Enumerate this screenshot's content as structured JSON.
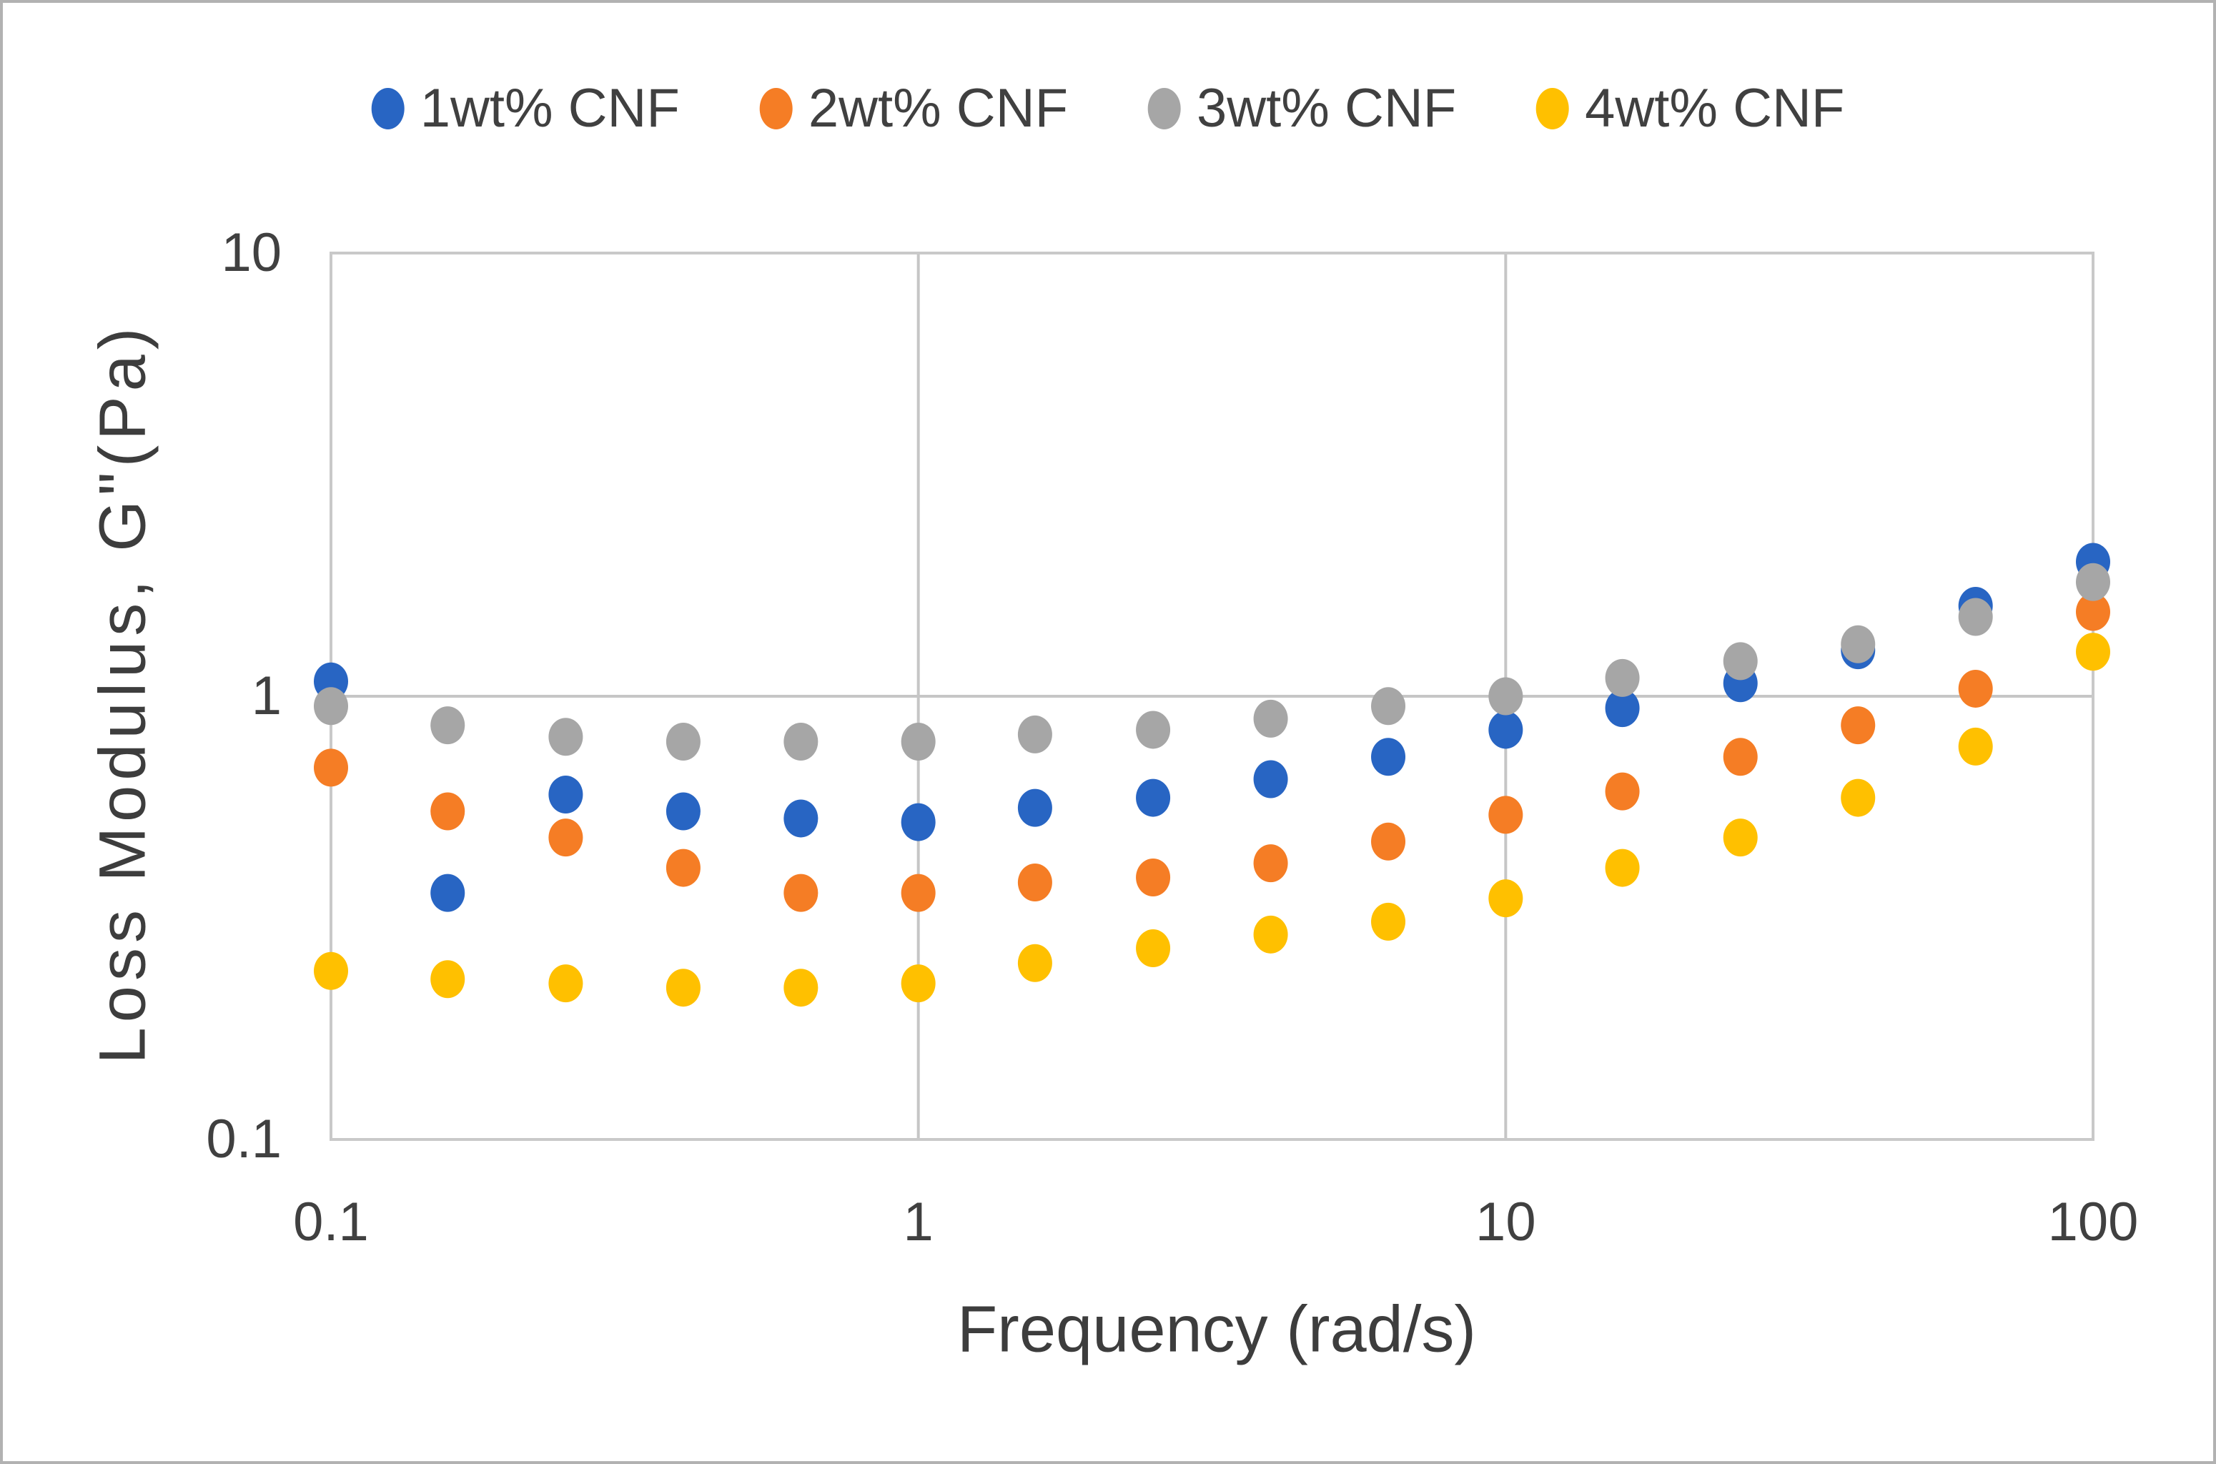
{
  "figure": {
    "background": "#ffffff",
    "outer_border_color": "#b2b2b2",
    "plot_border_color": "#c9c9c9",
    "gridline_color": "#c6c6c6",
    "text_color": "#404040"
  },
  "legend": {
    "position": "top-center",
    "items": [
      {
        "label": "1wt% CNF",
        "color": "#2865C3",
        "marker": "circle-icon"
      },
      {
        "label": "2wt% CNF",
        "color": "#F57D25",
        "marker": "circle-icon"
      },
      {
        "label": "3wt% CNF",
        "color": "#A6A6A6",
        "marker": "circle-icon"
      },
      {
        "label": "4wt% CNF",
        "color": "#FFC000",
        "marker": "circle-icon"
      }
    ]
  },
  "chart_data": {
    "type": "scatter",
    "title": "",
    "xlabel": "Frequency (rad/s)",
    "ylabel": "Loss Modulus, G\"(Pa)",
    "x_scale": "log",
    "y_scale": "log",
    "xlim": [
      0.1,
      100
    ],
    "ylim": [
      0.1,
      10
    ],
    "x_tick_values": [
      0.1,
      1,
      10,
      100
    ],
    "x_tick_labels": [
      "0.1",
      "1",
      "10",
      "100"
    ],
    "y_tick_values": [
      10,
      1,
      0.1
    ],
    "y_tick_labels": [
      "10",
      "1",
      "0.1"
    ],
    "grid": {
      "vertical_lines_at": [
        1,
        10
      ],
      "horizontal_lines_at": [
        1
      ],
      "shown": true
    },
    "legend_position": "top",
    "x": [
      0.1,
      0.158,
      0.251,
      0.398,
      0.631,
      1,
      1.58,
      2.51,
      3.98,
      6.31,
      10,
      15.8,
      25.1,
      39.8,
      63.1,
      100
    ],
    "series": [
      {
        "name": "1wt% CNF",
        "color": "#2865C3",
        "values": [
          1.08,
          0.36,
          0.6,
          0.55,
          0.53,
          0.52,
          0.56,
          0.59,
          0.65,
          0.73,
          0.84,
          0.94,
          1.07,
          1.27,
          1.6,
          2.01
        ]
      },
      {
        "name": "2wt% CNF",
        "color": "#F57D25",
        "values": [
          0.69,
          0.55,
          0.48,
          0.41,
          0.36,
          0.36,
          0.38,
          0.39,
          0.42,
          0.47,
          0.54,
          0.61,
          0.73,
          0.86,
          1.04,
          1.55
        ]
      },
      {
        "name": "3wt% CNF",
        "color": "#A6A6A6",
        "values": [
          0.95,
          0.86,
          0.81,
          0.79,
          0.79,
          0.79,
          0.82,
          0.84,
          0.89,
          0.95,
          1.0,
          1.1,
          1.2,
          1.31,
          1.51,
          1.81
        ]
      },
      {
        "name": "4wt% CNF",
        "color": "#FFC000",
        "values": [
          0.24,
          0.23,
          0.225,
          0.22,
          0.22,
          0.225,
          0.25,
          0.27,
          0.29,
          0.31,
          0.35,
          0.41,
          0.48,
          0.59,
          0.77,
          1.26
        ]
      }
    ]
  }
}
